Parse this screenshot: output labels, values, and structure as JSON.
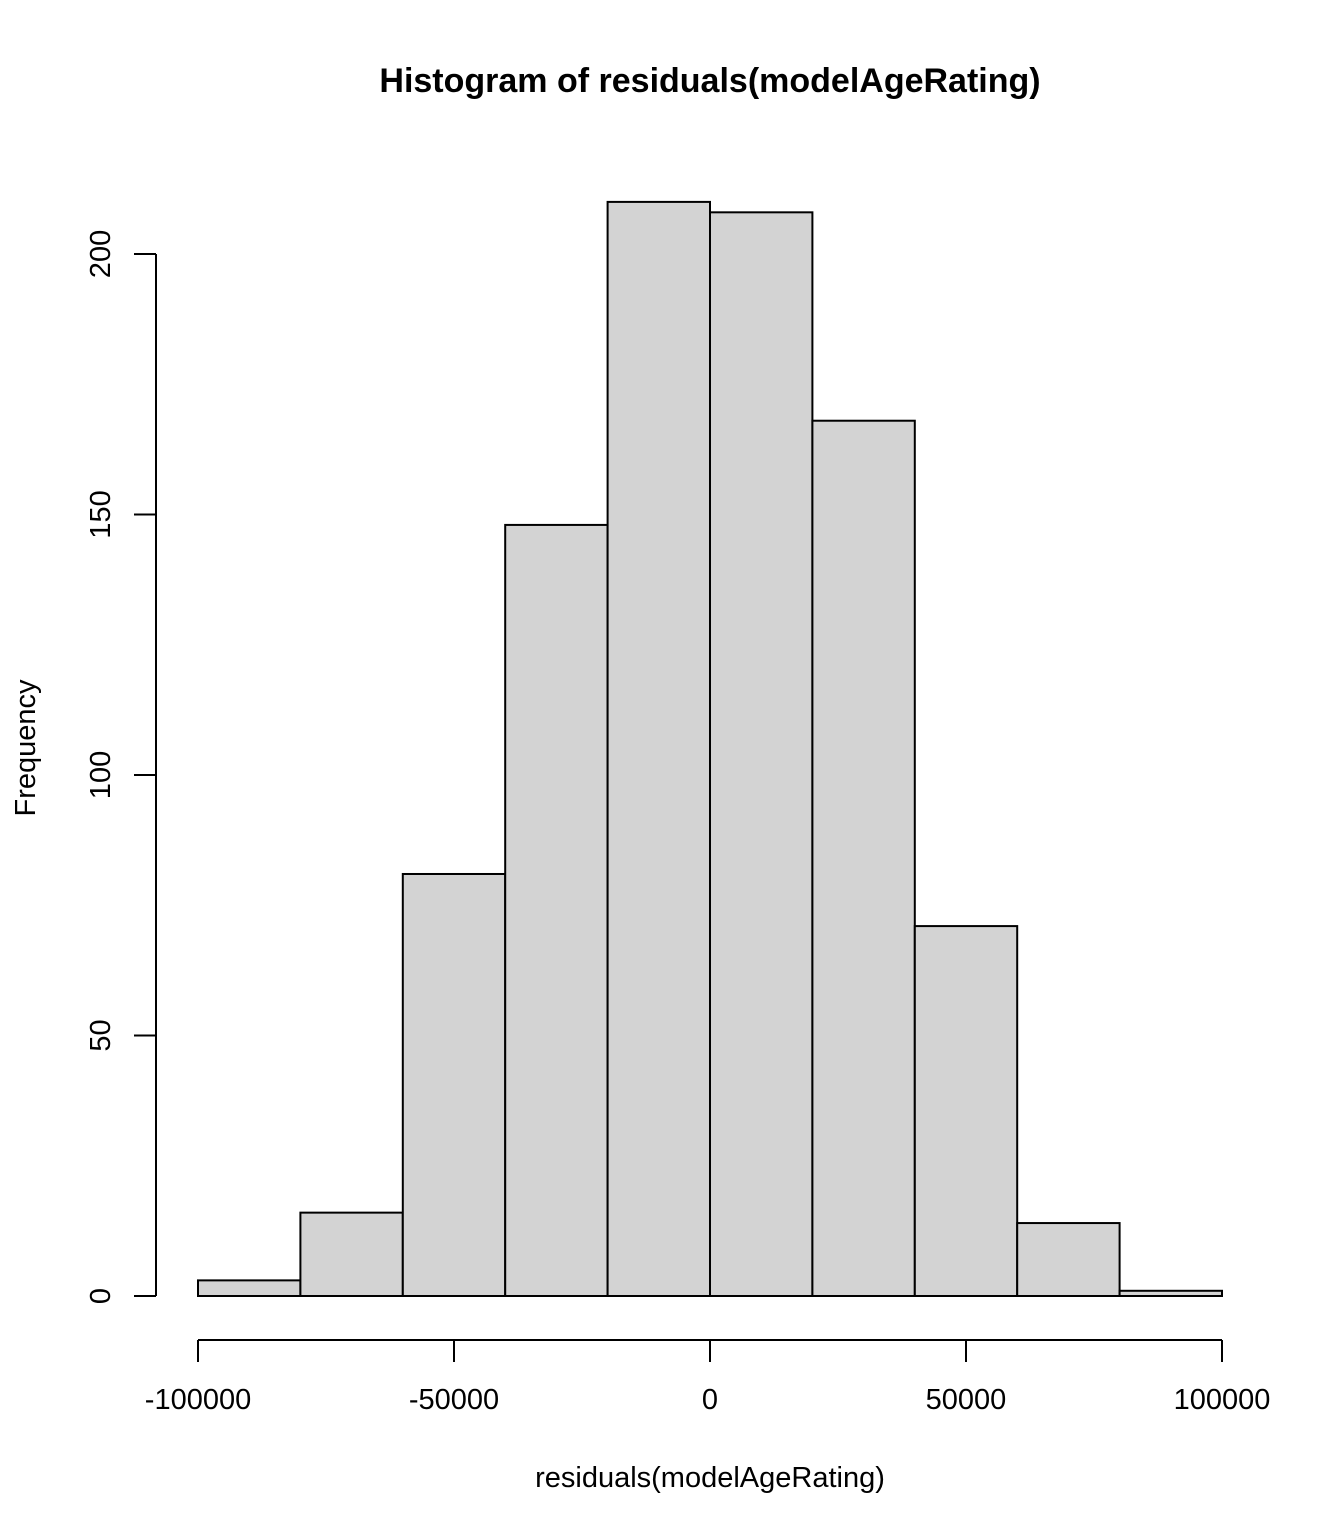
{
  "chart_data": {
    "type": "bar",
    "title": "Histogram of residuals(modelAgeRating)",
    "xlabel": "residuals(modelAgeRating)",
    "ylabel": "Frequency",
    "bins": [
      {
        "from": -100000,
        "to": -80000,
        "count": 3
      },
      {
        "from": -80000,
        "to": -60000,
        "count": 16
      },
      {
        "from": -60000,
        "to": -40000,
        "count": 81
      },
      {
        "from": -40000,
        "to": -20000,
        "count": 148
      },
      {
        "from": -20000,
        "to": 0,
        "count": 210
      },
      {
        "from": 0,
        "to": 20000,
        "count": 208
      },
      {
        "from": 20000,
        "to": 40000,
        "count": 168
      },
      {
        "from": 40000,
        "to": 60000,
        "count": 71
      },
      {
        "from": 60000,
        "to": 80000,
        "count": 14
      },
      {
        "from": 80000,
        "to": 100000,
        "count": 1
      }
    ],
    "xlim": [
      -100000,
      100000
    ],
    "ylim": [
      0,
      210
    ],
    "x_ticks": [
      -100000,
      -50000,
      0,
      50000,
      100000
    ],
    "x_tick_labels": [
      "-100000",
      "-50000",
      "0",
      "50000",
      "100000"
    ],
    "y_ticks": [
      0,
      50,
      100,
      150,
      200
    ],
    "y_tick_labels": [
      "0",
      "50",
      "100",
      "150",
      "200"
    ],
    "grid": false,
    "bar_fill": "#d3d3d3",
    "bar_stroke": "#000000"
  }
}
